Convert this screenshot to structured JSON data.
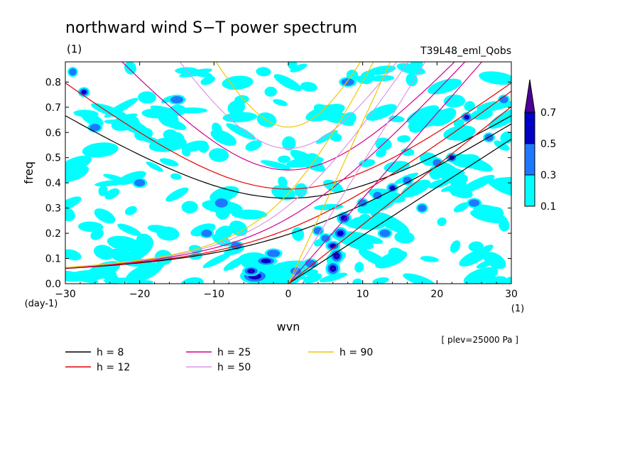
{
  "chart_data": {
    "type": "heatmap",
    "title": "northward wind S−T power spectrum",
    "subtitle_left": "(1)",
    "subtitle_right": "T39L48_eml_Qobs",
    "xlabel": "wvn",
    "ylabel": "freq",
    "x_unit": "(1)",
    "y_unit": "(day-1)",
    "note": "[ plev=25000 Pa ]",
    "xlim": [
      -30,
      30
    ],
    "ylim": [
      0,
      0.88
    ],
    "x_ticks": [
      "−30",
      "−20",
      "−10",
      "0",
      "10",
      "20",
      "30"
    ],
    "y_ticks": [
      "0.0",
      "0.1",
      "0.2",
      "0.3",
      "0.4",
      "0.5",
      "0.6",
      "0.7",
      "0.8"
    ],
    "colorbar": {
      "levels": [
        "0.1",
        "0.3",
        "0.5",
        "0.7"
      ],
      "colors": [
        "#00ffff",
        "#1e78ff",
        "#0000c8",
        "#4b0096"
      ]
    },
    "blobs": [
      [
        -4.5,
        0.03,
        2,
        0.03,
        3
      ],
      [
        -5,
        0.05,
        1.2,
        0.02,
        3
      ],
      [
        -3,
        0.09,
        1.5,
        0.02,
        2
      ],
      [
        -2,
        0.12,
        1.2,
        0.02,
        1
      ],
      [
        6,
        0.06,
        1,
        0.03,
        3
      ],
      [
        6.5,
        0.11,
        1,
        0.03,
        3
      ],
      [
        6,
        0.15,
        1,
        0.02,
        2
      ],
      [
        7,
        0.2,
        1,
        0.025,
        2
      ],
      [
        7.5,
        0.26,
        1,
        0.025,
        2
      ],
      [
        5,
        0.18,
        0.8,
        0.02,
        1
      ],
      [
        3,
        0.08,
        1,
        0.02,
        1
      ],
      [
        1,
        0.05,
        1,
        0.02,
        1
      ],
      [
        -27.5,
        0.76,
        0.8,
        0.02,
        2
      ],
      [
        14,
        0.38,
        0.8,
        0.02,
        2
      ],
      [
        16,
        0.41,
        0.8,
        0.02,
        1
      ],
      [
        22,
        0.5,
        0.8,
        0.02,
        2
      ],
      [
        24,
        0.66,
        0.8,
        0.02,
        2
      ],
      [
        27,
        0.58,
        0.8,
        0.02,
        1
      ],
      [
        10,
        0.32,
        0.8,
        0.02,
        1
      ],
      [
        12,
        0.35,
        0.8,
        0.02,
        1
      ],
      [
        20,
        0.48,
        0.8,
        0.02,
        1
      ],
      [
        -9,
        0.32,
        1.2,
        0.025,
        1
      ],
      [
        -11,
        0.2,
        1.0,
        0.02,
        1
      ],
      [
        18,
        0.3,
        0.8,
        0.02,
        1
      ],
      [
        -7,
        0.15,
        1,
        0.02,
        1
      ],
      [
        4,
        0.21,
        0.8,
        0.02,
        1
      ],
      [
        13,
        0.2,
        1,
        0.02,
        1
      ],
      [
        25,
        0.32,
        1,
        0.02,
        1
      ],
      [
        -26,
        0.62,
        1,
        0.02,
        1
      ],
      [
        -15,
        0.73,
        1.2,
        0.02,
        1
      ],
      [
        8,
        0.8,
        1.2,
        0.02,
        1
      ],
      [
        -20,
        0.4,
        1,
        0.02,
        1
      ],
      [
        29,
        0.73,
        0.8,
        0.02,
        1
      ],
      [
        -29,
        0.84,
        0.7,
        0.02,
        1
      ]
    ],
    "series": [
      {
        "name": "h =  8",
        "h": 8,
        "color": "#000000"
      },
      {
        "name": "h = 12",
        "h": 12,
        "color": "#e60000"
      },
      {
        "name": "h = 25",
        "h": 25,
        "color": "#d2008c"
      },
      {
        "name": "h = 50",
        "h": 50,
        "color": "#dc96e6"
      },
      {
        "name": "h = 90",
        "h": 90,
        "color": "#f0c800"
      }
    ]
  }
}
